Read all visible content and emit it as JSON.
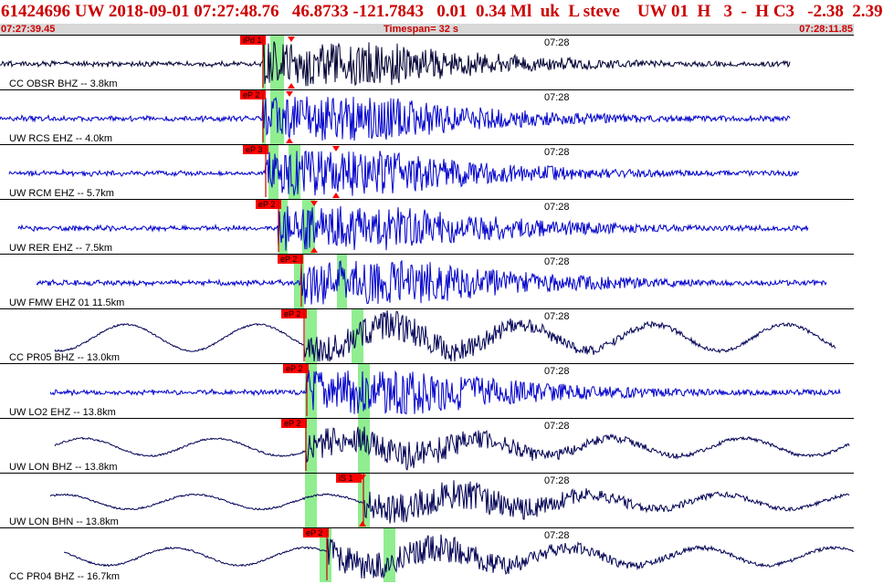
{
  "header": {
    "summary": "61424696 UW 2018-09-01 07:27:48.76   46.8733 -121.7843   0.01  0.34 Ml  uk  L steve    UW 01  H   3  -  H C3   -2.38  2.39"
  },
  "timebar": {
    "start": "07:27:39.45",
    "timespan": "Timespan=  32 s",
    "end": "07:28:11.85"
  },
  "minute_mark": "07:28",
  "colors": {
    "header_text": "#cc0000",
    "timebar_bg": "#d8d8d8",
    "pick_bg": "#ff0000",
    "highlight": "#90ee90",
    "trace_blue": "#0000cc",
    "trace_navy": "#000055"
  },
  "channels": [
    {
      "label": "CC OBSR BHZ -- 3.8km",
      "pick": "iPd 1",
      "color": "#000033",
      "type": "hf",
      "amp": 0.95
    },
    {
      "label": "UW RCS EHZ -- 4.0km",
      "pick": "eP 2",
      "color": "#0000cc",
      "type": "hf",
      "amp": 0.95
    },
    {
      "label": "UW RCM EHZ -- 5.7km",
      "pick": "eP 3",
      "color": "#0000cc",
      "type": "hf",
      "amp": 0.95
    },
    {
      "label": "UW RER EHZ -- 7.5km",
      "pick": "eP 2",
      "color": "#0000cc",
      "type": "hf",
      "amp": 0.95
    },
    {
      "label": "UW FMW EHZ 01 11.5km",
      "pick": "eP 2",
      "color": "#0000cc",
      "type": "hf",
      "amp": 0.95
    },
    {
      "label": "CC PR05 BHZ -- 13.0km",
      "pick": "eP 2",
      "color": "#000055",
      "type": "lf",
      "amp": 0.9
    },
    {
      "label": "UW LO2 EHZ -- 13.8km",
      "pick": "eP 2",
      "color": "#0000cc",
      "type": "hf",
      "amp": 0.95
    },
    {
      "label": "UW LON BHZ -- 13.8km",
      "pick": "eP 2",
      "color": "#000055",
      "type": "lf",
      "amp": 0.6
    },
    {
      "label": "UW LON BHN -- 13.8km",
      "pick": "iS 1",
      "color": "#000055",
      "type": "lf",
      "amp": 0.5
    },
    {
      "label": "CC PR04 BHZ -- 16.7km",
      "pick": "eP 2",
      "color": "#000055",
      "type": "lf",
      "amp": 0.6
    }
  ]
}
